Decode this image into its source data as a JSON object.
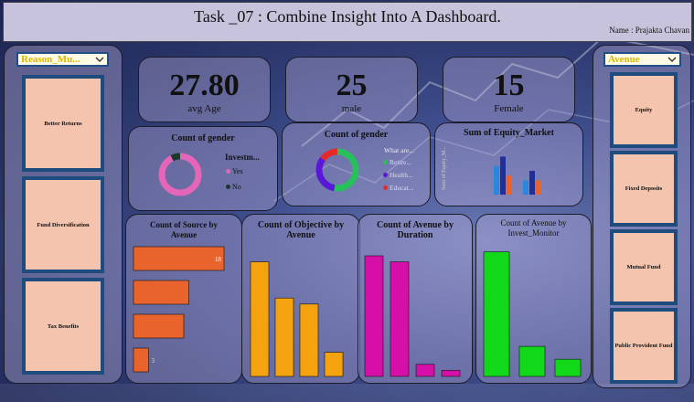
{
  "header": {
    "title": "Task _07 : Combine Insight  Into A Dashboard.",
    "author": "Name : Prajakta Chavan"
  },
  "left_panel": {
    "slicer": {
      "value": "Reason_Mu...",
      "icon": "chevron-down-icon"
    },
    "tiles": [
      "Better Returns",
      "Fund Diversification",
      "Tax Benefits"
    ]
  },
  "right_panel": {
    "slicer": {
      "value": "Avenue",
      "icon": "chevron-down-icon"
    },
    "tiles": [
      "Equity",
      "Fixed Deposits",
      "Mutual Fund",
      "Public Provident Fund"
    ]
  },
  "kpis": [
    {
      "value": "27.80",
      "label": "avg Age"
    },
    {
      "value": "25",
      "label": "male"
    },
    {
      "value": "15",
      "label": "Female"
    }
  ],
  "colors": {
    "accent": "#1e4c7f",
    "tile_bg": "#f4c4ae",
    "orange": "#e8642c",
    "amber": "#f5a20f",
    "magenta": "#d60fa8",
    "green": "#12d81a"
  },
  "charts": {
    "donut1": {
      "title": "Count of gender",
      "legend_title": "Investm...",
      "legend": [
        "Yes",
        "No"
      ]
    },
    "donut2": {
      "title": "Count of gender",
      "legend_title": "What are...",
      "legend": [
        "Retire...",
        "Health...",
        "Educat..."
      ]
    },
    "equity": {
      "title": "Sum of Equity_Market",
      "ylabel": "Sum of Equity_M..."
    },
    "source": {
      "title": "Count of Source by Avenue",
      "data_label": "18"
    },
    "objective": {
      "title": "Count of Objective by Avenue"
    },
    "duration": {
      "title": "Count of Avenue by Duration"
    },
    "monitor": {
      "title": "Count of Avenue by Invest_Monitor"
    }
  },
  "chart_data": [
    {
      "type": "pie",
      "title": "Count of gender",
      "legend_title": "Investm...",
      "categories": [
        "Yes",
        "No"
      ],
      "values": [
        37,
        3
      ]
    },
    {
      "type": "pie",
      "title": "Count of gender",
      "legend_title": "What are...",
      "categories": [
        "Retire...",
        "Health...",
        "Educat..."
      ],
      "values": [
        21,
        13,
        6
      ]
    },
    {
      "type": "bar",
      "title": "Sum of Equity_Market",
      "ylabel": "Sum of Equity_M...",
      "series": [
        {
          "values": [
            6,
            8,
            4
          ]
        },
        {
          "values": [
            3,
            5,
            3
          ]
        }
      ]
    },
    {
      "type": "bar",
      "title": "Count of Source by Avenue",
      "orientation": "horizontal",
      "values": [
        18,
        11,
        10,
        3
      ],
      "value_labels": [
        "18",
        "",
        "",
        "3"
      ]
    },
    {
      "type": "bar",
      "title": "Count of Objective by Avenue",
      "values": [
        19,
        13,
        12,
        4
      ]
    },
    {
      "type": "bar",
      "title": "Count of Avenue by Duration",
      "values": [
        20,
        19,
        2,
        1
      ]
    },
    {
      "type": "bar",
      "title": "Count of Avenue by Invest_Monitor",
      "values": [
        29,
        7,
        4
      ]
    }
  ]
}
